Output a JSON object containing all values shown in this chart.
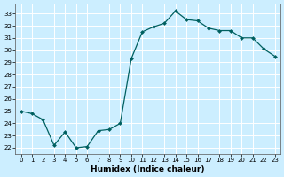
{
  "x": [
    0,
    1,
    2,
    3,
    4,
    5,
    6,
    7,
    8,
    9,
    10,
    11,
    12,
    13,
    14,
    15,
    16,
    17,
    18,
    19,
    20,
    21,
    22,
    23
  ],
  "y": [
    25.0,
    24.8,
    24.3,
    22.2,
    23.3,
    22.0,
    22.1,
    23.4,
    23.5,
    24.0,
    29.3,
    31.5,
    31.9,
    32.2,
    33.2,
    32.5,
    32.4,
    31.8,
    31.6,
    31.6,
    31.0,
    31.0,
    30.1,
    29.5
  ],
  "xlabel": "Humidex (Indice chaleur)",
  "ylim": [
    21.5,
    33.8
  ],
  "xlim": [
    -0.5,
    23.5
  ],
  "yticks": [
    22,
    23,
    24,
    25,
    26,
    27,
    28,
    29,
    30,
    31,
    32,
    33
  ],
  "xticks": [
    0,
    1,
    2,
    3,
    4,
    5,
    6,
    7,
    8,
    9,
    10,
    11,
    12,
    13,
    14,
    15,
    16,
    17,
    18,
    19,
    20,
    21,
    22,
    23
  ],
  "line_color": "#006060",
  "marker": "D",
  "marker_size": 2.0,
  "bg_color": "#cceeff",
  "grid_color": "#ffffff",
  "grid_minor_color": "#e8f8f8",
  "fig_bg": "#cceeff",
  "tick_fontsize": 5.0,
  "xlabel_fontsize": 6.5,
  "line_width": 0.9
}
